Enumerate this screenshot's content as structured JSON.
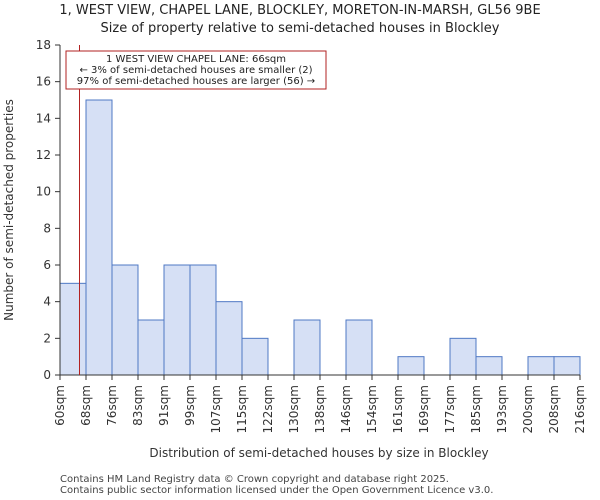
{
  "title_line1": "1, WEST VIEW, CHAPEL LANE, BLOCKLEY, MORETON-IN-MARSH, GL56 9BE",
  "title_line2": "Size of property relative to semi-detached houses in Blockley",
  "footer_line1": "Contains HM Land Registry data © Crown copyright and database right 2025.",
  "footer_line2": "Contains public sector information licensed under the Open Government Licence v3.0.",
  "colors": {
    "bar_fill": "#d6e0f5",
    "bar_stroke": "#4f78c4",
    "marker": "#b22222",
    "axis": "#333333"
  },
  "chart_data": {
    "type": "bar",
    "title": "Size of property relative to semi-detached houses in Blockley",
    "xlabel": "Distribution of semi-detached houses by size in Blockley",
    "ylabel": "Number of semi-detached properties",
    "bin_edges": [
      "60sqm",
      "68sqm",
      "76sqm",
      "83sqm",
      "91sqm",
      "99sqm",
      "107sqm",
      "115sqm",
      "122sqm",
      "130sqm",
      "138sqm",
      "146sqm",
      "154sqm",
      "161sqm",
      "169sqm",
      "177sqm",
      "185sqm",
      "193sqm",
      "200sqm",
      "208sqm",
      "216sqm"
    ],
    "values": [
      5,
      15,
      6,
      3,
      6,
      6,
      4,
      2,
      0,
      3,
      0,
      3,
      0,
      1,
      0,
      2,
      1,
      0,
      1,
      1
    ],
    "ylim": [
      0,
      18
    ],
    "yticks": [
      0,
      2,
      4,
      6,
      8,
      10,
      12,
      14,
      16,
      18
    ],
    "grid": false,
    "marker": {
      "value_sqm": 66,
      "label_line1": "1 WEST VIEW CHAPEL LANE: 66sqm",
      "label_line2": "← 3% of semi-detached houses are smaller (2)",
      "label_line3": "97% of semi-detached houses are larger (56) →"
    }
  }
}
